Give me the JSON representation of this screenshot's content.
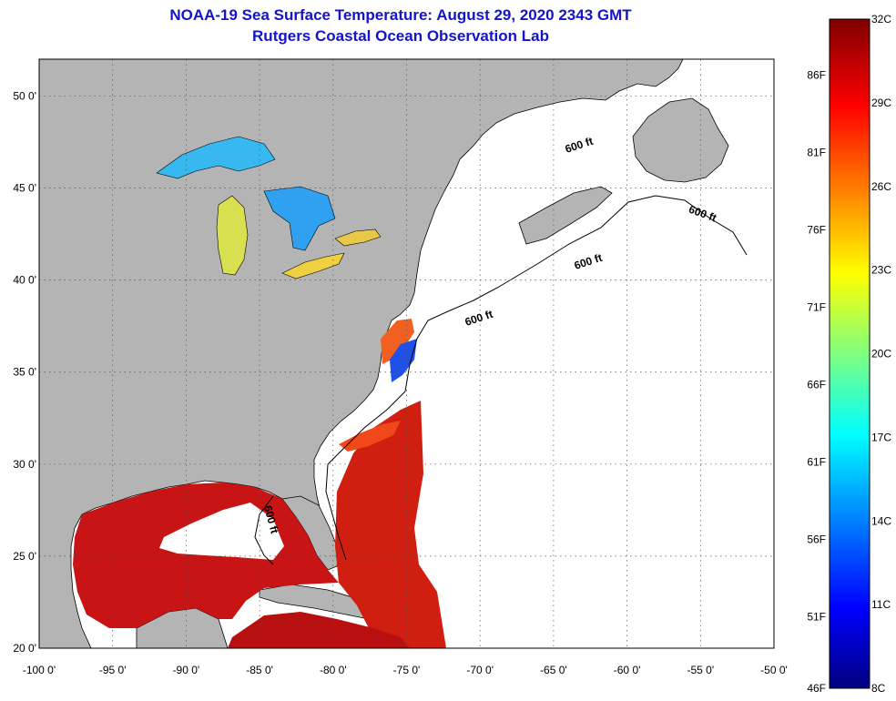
{
  "title": {
    "line1": "NOAA-19 Sea Surface Temperature:  August 29, 2020 2343 GMT",
    "line2": "Rutgers Coastal Ocean Observation Lab"
  },
  "map": {
    "lon_range": [
      -100,
      -50
    ],
    "lat_range": [
      20,
      52
    ],
    "lon_ticks": [
      "-100 0'",
      "-95 0'",
      "-90 0'",
      "-85 0'",
      "-80 0'",
      "-75 0'",
      "-70 0'",
      "-65 0'",
      "-60 0'",
      "-55 0'",
      "-50 0'"
    ],
    "lat_ticks": [
      "20 0'",
      "25 0'",
      "30 0'",
      "35 0'",
      "40 0'",
      "45 0'",
      "50 0'"
    ],
    "contour_labels": [
      "600 ft",
      "600 ft",
      "600 ft",
      "600 ft",
      "600 ft"
    ],
    "colors": {
      "land": "#b4b4b4",
      "no_data": "#ffffff",
      "grid": "#555555"
    }
  },
  "colorbar": {
    "fahrenheit": [
      "86F",
      "81F",
      "76F",
      "71F",
      "66F",
      "61F",
      "56F",
      "51F",
      "46F"
    ],
    "celsius": [
      "32C",
      "29C",
      "26C",
      "23C",
      "20C",
      "17C",
      "14C",
      "11C",
      "8C"
    ],
    "min_c": 8,
    "max_c": 32
  }
}
